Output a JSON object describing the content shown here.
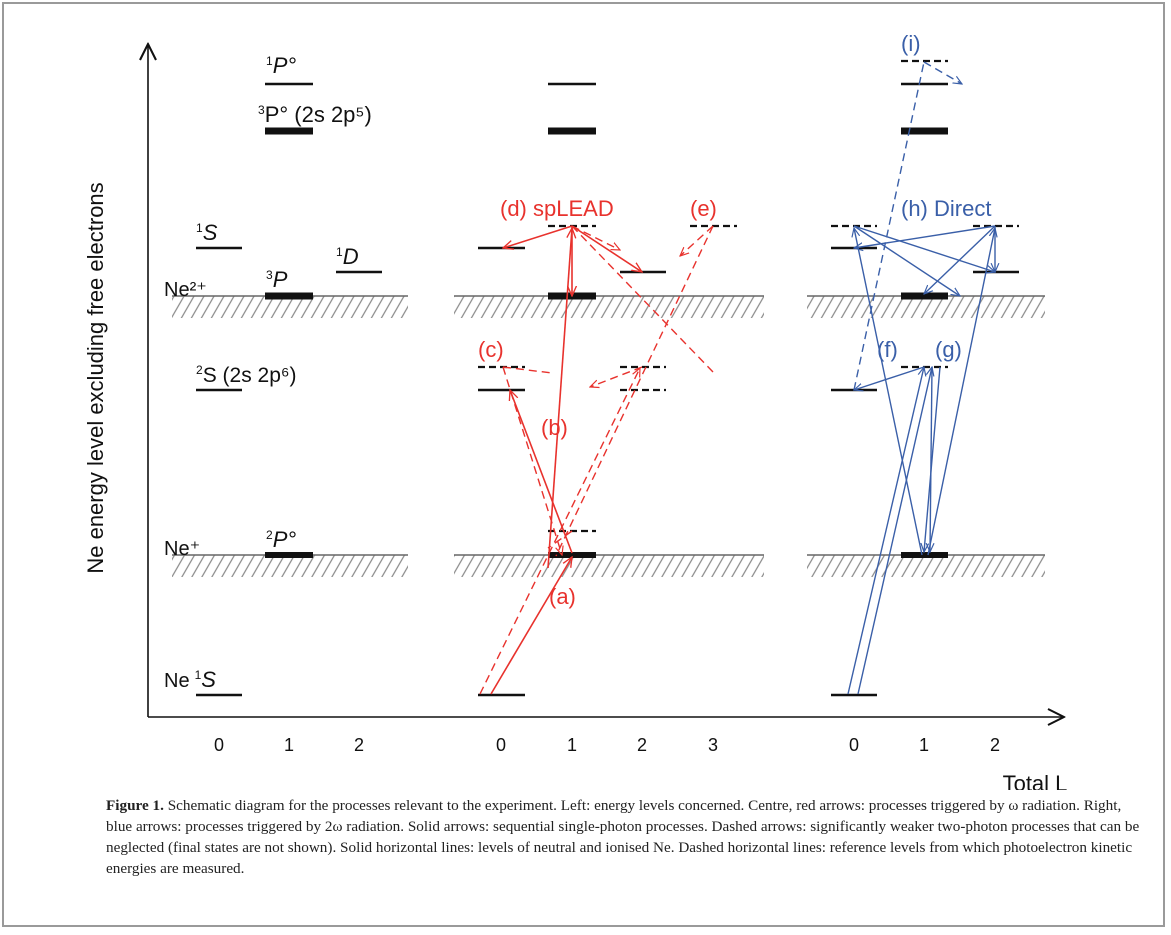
{
  "y_axis_label": "Ne energy level excluding free electrons",
  "x_axis_label": "Total L",
  "ticks": {
    "left": [
      "0",
      "1",
      "2"
    ],
    "centre": [
      "0",
      "1",
      "2",
      "3"
    ],
    "right": [
      "0",
      "1",
      "2"
    ]
  },
  "levels": {
    "ne2plus": "Ne²⁺",
    "neplus": "Ne⁺",
    "ne": "Ne",
    "state_1S_top": "S",
    "state_3P": "P",
    "state_1D": "D",
    "state_2S": "S (2s 2p⁶)",
    "state_2Po": "P°",
    "state_1S_ground": "S",
    "state_1Po": "P°",
    "state_3Po": "P° (2s 2p⁵)"
  },
  "process_labels": {
    "a": "(a)",
    "b": "(b)",
    "c": "(c)",
    "d": "(d) spLEAD",
    "e": "(e)",
    "f": "(f)",
    "g": "(g)",
    "h": "(h) Direct",
    "i": "(i)"
  },
  "colors": {
    "omega": "#e8322d",
    "two_omega": "#3a5fa8",
    "levels": "#111111",
    "hatch": "#888888"
  },
  "caption": {
    "label": "Figure 1.",
    "text": " Schematic diagram for the processes relevant to the experiment. Left: energy levels concerned. Centre, red arrows: processes triggered by ω radiation. Right, blue arrows: processes triggered by 2ω radiation. Solid arrows: sequential single-photon processes. Dashed arrows: significantly weaker two-photon processes that can be neglected (final states are not shown). Solid horizontal lines: levels of neutral and ionised Ne. Dashed horizontal lines: reference levels from which photoelectron kinetic energies are measured."
  }
}
